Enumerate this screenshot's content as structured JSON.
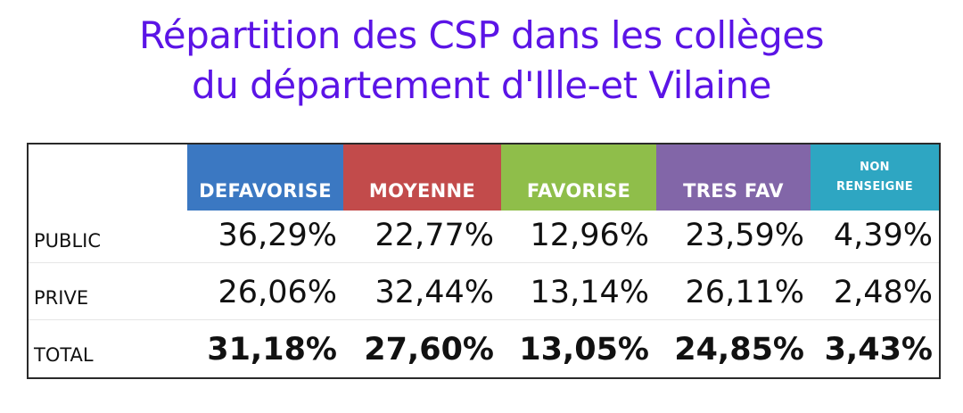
{
  "title": {
    "line1": "Répartition des CSP dans les collèges",
    "line2": "du département d'Ille-et Vilaine"
  },
  "colors": {
    "title": "#5b14e6",
    "defavorise": "#3b78c2",
    "moyenne": "#c24b4b",
    "favorise": "#8fbe4a",
    "tres_fav": "#8266a8",
    "non_renseigne": "#2ea6c2"
  },
  "chart_data": {
    "type": "table",
    "columns": [
      "DEFAVORISE",
      "MOYENNE",
      "FAVORISE",
      "TRES FAV",
      "NON RENSEIGNE"
    ],
    "column_label_lines": {
      "non_renseigne": [
        "NON",
        "RENSEIGNE"
      ]
    },
    "rows": [
      {
        "label": "PUBLIC",
        "values": [
          "36,29%",
          "22,77%",
          "12,96%",
          "23,59%",
          "4,39%"
        ]
      },
      {
        "label": "PRIVE",
        "values": [
          "26,06%",
          "32,44%",
          "13,14%",
          "26,11%",
          "2,48%"
        ]
      },
      {
        "label": "TOTAL",
        "values": [
          "31,18%",
          "27,60%",
          "13,05%",
          "24,85%",
          "3,43%"
        ],
        "bold": true
      }
    ]
  }
}
